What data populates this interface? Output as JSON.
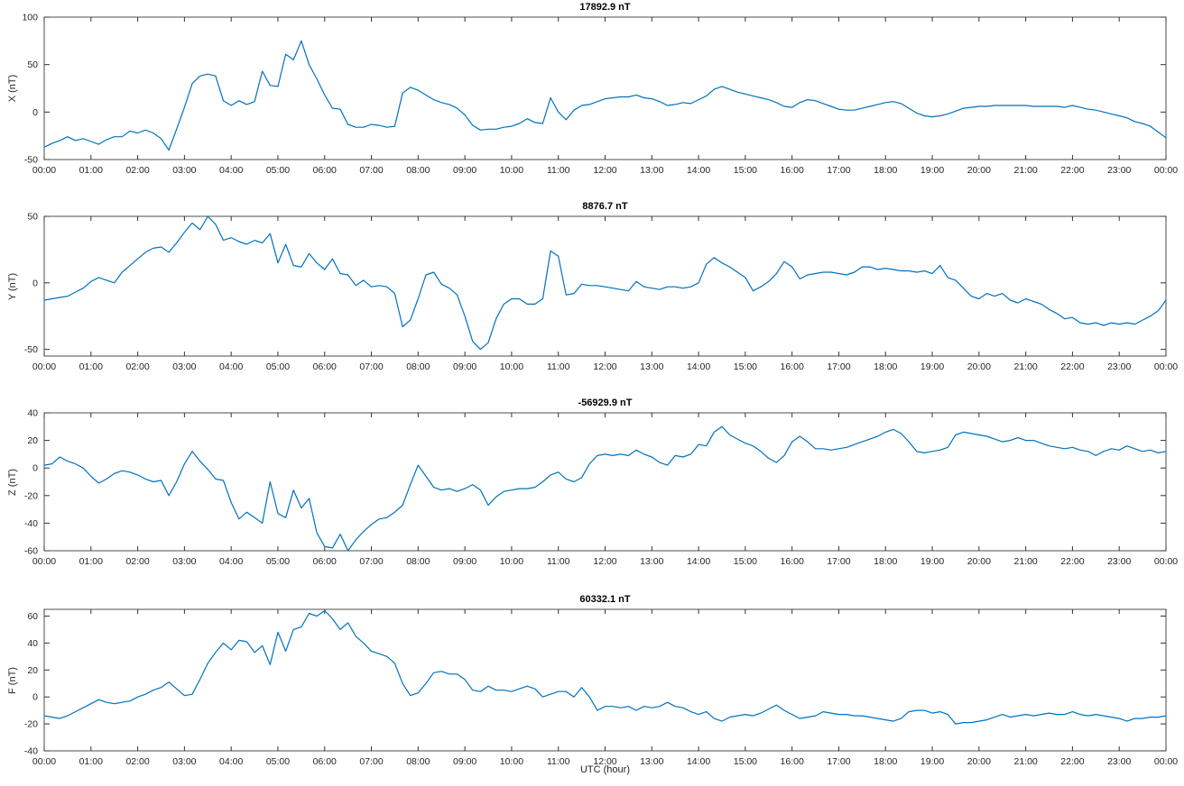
{
  "figure": {
    "xlabel": "UTC (hour)",
    "line_color": "#0072BD",
    "axis_box_color": "#4d4d4d",
    "tick_color": "#333333",
    "tick_label_color": "#262626",
    "background": "#FFFFFF",
    "x_start_hour": 0,
    "x_end_hour": 24,
    "sample_step_minutes": 10,
    "xticklabels": [
      "00:00",
      "01:00",
      "02:00",
      "03:00",
      "04:00",
      "05:00",
      "06:00",
      "07:00",
      "08:00",
      "09:00",
      "10:00",
      "11:00",
      "12:00",
      "13:00",
      "14:00",
      "15:00",
      "16:00",
      "17:00",
      "18:00",
      "19:00",
      "20:00",
      "21:00",
      "22:00",
      "23:00",
      "00:00"
    ]
  },
  "chart_data": [
    {
      "type": "line",
      "title": "17892.9 nT",
      "ylabel": "X (nT)",
      "ylim": [
        -50,
        100
      ],
      "yticks": [
        -50,
        0,
        50,
        100
      ],
      "x_unit": "hour of day (UTC)",
      "values": [
        -37,
        -33,
        -30,
        -26,
        -30,
        -28,
        -31,
        -34,
        -29,
        -26,
        -26,
        -20,
        -22,
        -19,
        -22,
        -28,
        -40,
        -18,
        5,
        30,
        38,
        40,
        38,
        12,
        7,
        12,
        8,
        11,
        43,
        28,
        27,
        61,
        55,
        75,
        50,
        35,
        18,
        4,
        3,
        -13,
        -16,
        -16,
        -13,
        -14,
        -16,
        -15,
        20,
        26,
        23,
        18,
        13,
        10,
        8,
        4,
        -3,
        -14,
        -19,
        -18,
        -18,
        -16,
        -15,
        -12,
        -7,
        -11,
        -12,
        15,
        0,
        -8,
        2,
        7,
        8,
        11,
        14,
        15,
        16,
        16,
        18,
        15,
        14,
        11,
        7,
        8,
        10,
        9,
        13,
        17,
        24,
        27,
        24,
        21,
        19,
        17,
        15,
        13,
        10,
        6,
        5,
        10,
        13,
        12,
        9,
        6,
        3,
        2,
        2,
        4,
        6,
        8,
        10,
        11,
        9,
        4,
        -1,
        -4,
        -5,
        -4,
        -2,
        1,
        4,
        5,
        6,
        6,
        7,
        7,
        7,
        7,
        7,
        6,
        6,
        6,
        6,
        5,
        7,
        5,
        3,
        2,
        0,
        -2,
        -4,
        -6,
        -10,
        -12,
        -15,
        -21,
        -27
      ]
    },
    {
      "type": "line",
      "title": "8876.7 nT",
      "ylabel": "Y (nT)",
      "ylim": [
        -55,
        50
      ],
      "yticks": [
        -50,
        0,
        50
      ],
      "x_unit": "hour of day (UTC)",
      "values": [
        -13,
        -12,
        -11,
        -10,
        -7,
        -4,
        1,
        4,
        2,
        0,
        8,
        13,
        18,
        23,
        26,
        27,
        23,
        30,
        38,
        45,
        40,
        51,
        44,
        32,
        34,
        31,
        29,
        32,
        30,
        37,
        15,
        29,
        13,
        12,
        22,
        15,
        10,
        18,
        7,
        6,
        -2,
        2,
        -3,
        -2,
        -3,
        -8,
        -33,
        -28,
        -12,
        6,
        8,
        -1,
        -4,
        -9,
        -25,
        -44,
        -50,
        -45,
        -27,
        -16,
        -12,
        -12,
        -16,
        -16,
        -12,
        24,
        20,
        -9,
        -8,
        -1,
        -2,
        -2,
        -3,
        -4,
        -5,
        -6,
        1,
        -3,
        -4,
        -5,
        -3,
        -3,
        -4,
        -3,
        0,
        14,
        19,
        15,
        12,
        8,
        4,
        -6,
        -3,
        1,
        7,
        16,
        12,
        3,
        6,
        7,
        8,
        8,
        7,
        6,
        8,
        12,
        12,
        10,
        11,
        10,
        9,
        9,
        8,
        9,
        7,
        13,
        4,
        2,
        -4,
        -10,
        -12,
        -8,
        -10,
        -8,
        -13,
        -15,
        -12,
        -14,
        -16,
        -20,
        -23,
        -27,
        -26,
        -30,
        -31,
        -30,
        -32,
        -30,
        -31,
        -30,
        -31,
        -28,
        -25,
        -21,
        -13
      ]
    },
    {
      "type": "line",
      "title": "-56929.9 nT",
      "ylabel": "Z (nT)",
      "ylim": [
        -60,
        40
      ],
      "yticks": [
        -60,
        -40,
        -20,
        0,
        20,
        40
      ],
      "x_unit": "hour of day (UTC)",
      "values": [
        2,
        3,
        8,
        5,
        3,
        0,
        -6,
        -11,
        -8,
        -4,
        -2,
        -3,
        -5,
        -8,
        -10,
        -9,
        -20,
        -10,
        3,
        12,
        5,
        -1,
        -8,
        -9,
        -25,
        -37,
        -32,
        -36,
        -40,
        -10,
        -33,
        -36,
        -16,
        -29,
        -22,
        -47,
        -57,
        -58,
        -48,
        -61,
        -52,
        -46,
        -41,
        -37,
        -36,
        -32,
        -27,
        -12,
        2,
        -6,
        -14,
        -16,
        -15,
        -17,
        -15,
        -12,
        -16,
        -27,
        -21,
        -17,
        -16,
        -15,
        -15,
        -14,
        -10,
        -5,
        -3,
        -8,
        -10,
        -7,
        3,
        9,
        10,
        9,
        10,
        9,
        13,
        10,
        8,
        4,
        2,
        9,
        8,
        10,
        17,
        16,
        26,
        30,
        24,
        21,
        18,
        16,
        12,
        7,
        4,
        9,
        19,
        23,
        19,
        14,
        14,
        13,
        14,
        15,
        17,
        19,
        21,
        23,
        26,
        28,
        25,
        19,
        12,
        11,
        12,
        13,
        15,
        24,
        26,
        25,
        24,
        23,
        21,
        19,
        20,
        22,
        20,
        20,
        18,
        16,
        15,
        14,
        15,
        13,
        12,
        9,
        12,
        14,
        13,
        16,
        14,
        12,
        13,
        11,
        12
      ]
    },
    {
      "type": "line",
      "title": "60332.1 nT",
      "ylabel": "F (nT)",
      "ylim": [
        -40,
        65
      ],
      "yticks": [
        -40,
        -20,
        0,
        20,
        40,
        60
      ],
      "x_unit": "hour of day (UTC)",
      "values": [
        -14,
        -15,
        -16,
        -14,
        -11,
        -8,
        -5,
        -2,
        -4,
        -5,
        -4,
        -3,
        0,
        2,
        5,
        7,
        11,
        6,
        1,
        2,
        13,
        25,
        33,
        40,
        35,
        42,
        41,
        33,
        38,
        24,
        48,
        34,
        50,
        52,
        62,
        60,
        64,
        58,
        50,
        55,
        45,
        40,
        34,
        32,
        30,
        25,
        10,
        1,
        3,
        10,
        18,
        19,
        17,
        17,
        13,
        5,
        4,
        8,
        5,
        5,
        4,
        6,
        8,
        6,
        0,
        2,
        4,
        4,
        0,
        7,
        0,
        -10,
        -7,
        -7,
        -8,
        -7,
        -10,
        -7,
        -8,
        -7,
        -4,
        -7,
        -8,
        -11,
        -13,
        -11,
        -16,
        -18,
        -15,
        -14,
        -13,
        -14,
        -12,
        -9,
        -6,
        -10,
        -13,
        -16,
        -15,
        -14,
        -11,
        -12,
        -13,
        -13,
        -14,
        -14,
        -15,
        -16,
        -17,
        -18,
        -16,
        -11,
        -10,
        -10,
        -12,
        -11,
        -13,
        -20,
        -19,
        -19,
        -18,
        -17,
        -15,
        -13,
        -15,
        -14,
        -13,
        -14,
        -13,
        -12,
        -13,
        -13,
        -11,
        -13,
        -14,
        -13,
        -14,
        -15,
        -16,
        -18,
        -16,
        -16,
        -15,
        -15,
        -14
      ]
    }
  ]
}
